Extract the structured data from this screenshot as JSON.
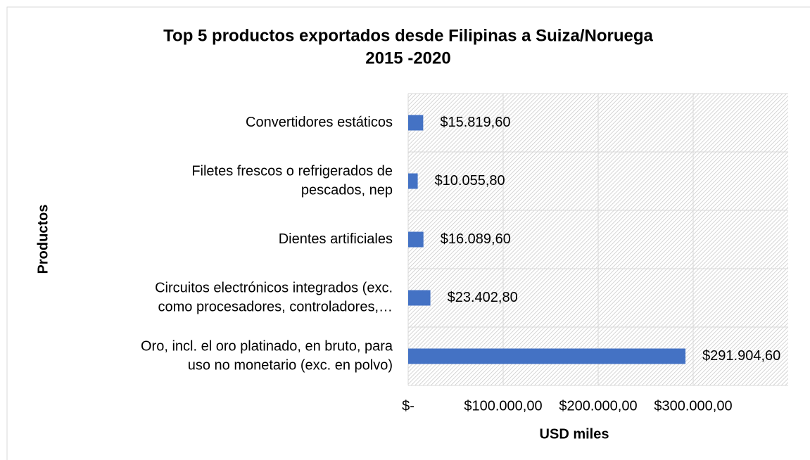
{
  "chart_data": {
    "type": "bar",
    "orientation": "horizontal",
    "title": [
      "Top 5 productos exportados desde Filipinas a Suiza/Noruega",
      "2015 -2020"
    ],
    "x_label": "USD miles",
    "y_label": "Productos",
    "categories": [
      [
        "Convertidores estáticos"
      ],
      [
        "Filetes frescos o refrigerados de",
        "pescados, nep"
      ],
      [
        "Dientes artificiales"
      ],
      [
        "Circuitos electrónicos integrados (exc.",
        "como procesadores, controladores,…"
      ],
      [
        "Oro, incl. el oro platinado, en bruto, para",
        "uso no monetario (exc. en polvo)"
      ]
    ],
    "values": [
      15819.6,
      10055.8,
      16089.6,
      23402.8,
      291904.6
    ],
    "value_labels": [
      "$15.819,60",
      "$10.055,80",
      "$16.089,60",
      "$23.402,80",
      "$291.904,60"
    ],
    "color": "#4472c4",
    "xlim": [
      0,
      400000
    ],
    "xticks": [
      {
        "value": 0,
        "label": "$-"
      },
      {
        "value": 100000,
        "label": "$100.000,00"
      },
      {
        "value": 200000,
        "label": "$200.000,00"
      },
      {
        "value": 300000,
        "label": "$300.000,00"
      }
    ],
    "grid": true
  }
}
